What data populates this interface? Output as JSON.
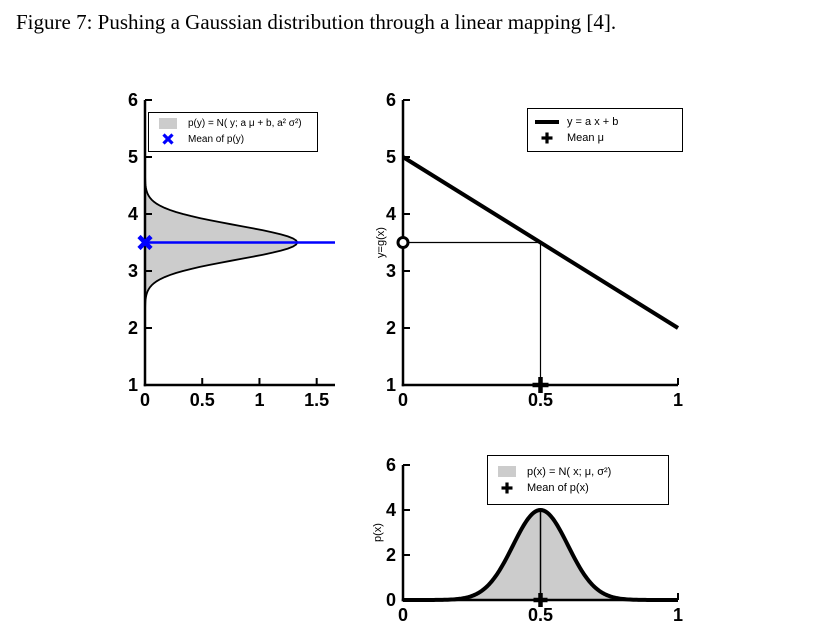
{
  "caption": "Figure 7: Pushing a Gaussian distribution through a linear mapping [4].",
  "colors": {
    "fill_gray": "#cccccc",
    "mean_blue": "#0000ff",
    "axis_black": "#000000"
  },
  "chart_data": [
    {
      "id": "py",
      "type": "area",
      "orientation": "rotated-density",
      "description": "Output Gaussian p(y) drawn sideways: density value on horizontal axis, y on vertical axis",
      "xlim": [
        0,
        1.66
      ],
      "ylim": [
        1,
        6
      ],
      "xticks": [
        0,
        0.5,
        1,
        1.5
      ],
      "yticks": [
        1,
        2,
        3,
        4,
        5,
        6
      ],
      "xlabel": "",
      "ylabel": "",
      "gaussian": {
        "mu": 3.5,
        "sigma": 0.3,
        "peak": 1.33
      },
      "mean": {
        "y": 3.5,
        "marker": "x",
        "color": "#0000ff"
      },
      "legend": [
        {
          "swatch": "gray-patch",
          "label": "p(y) = N( y; a μ + b, a² σ²)"
        },
        {
          "swatch": "blue-x",
          "label": "Mean of p(y)"
        }
      ]
    },
    {
      "id": "mapping",
      "type": "line",
      "description": "Linear mapping y = a x + b with a = -3, b = 5; guides connect input mean 0.5 to output mean 3.5",
      "xlim": [
        0,
        1
      ],
      "ylim": [
        1,
        6
      ],
      "xticks": [
        0,
        0.5,
        1
      ],
      "yticks": [
        1,
        2,
        3,
        4,
        5,
        6
      ],
      "xlabel": "",
      "ylabel": "y=g(x)",
      "line": {
        "equation": "y = a x + b",
        "a": -3,
        "b": 5,
        "x": [
          0,
          1
        ],
        "y": [
          5,
          2
        ]
      },
      "markers": [
        {
          "shape": "o",
          "x": 0,
          "y": 3.5
        },
        {
          "shape": "+",
          "x": 0.5,
          "y": 1
        }
      ],
      "guides": [
        {
          "x1": 0.5,
          "y1": 1,
          "x2": 0.5,
          "y2": 3.5
        },
        {
          "x1": 0,
          "y1": 3.5,
          "x2": 0.5,
          "y2": 3.5
        }
      ],
      "legend": [
        {
          "swatch": "thick-line",
          "label": "y = a x + b"
        },
        {
          "swatch": "black-plus",
          "label": "Mean μ"
        }
      ]
    },
    {
      "id": "px",
      "type": "area",
      "description": "Input Gaussian p(x) with mean 0.5 and peak density 4",
      "xlim": [
        0,
        1
      ],
      "ylim": [
        0,
        6
      ],
      "xticks": [
        0,
        0.5,
        1
      ],
      "yticks": [
        0,
        2,
        4,
        6
      ],
      "xlabel": "",
      "ylabel": "p(x)",
      "gaussian": {
        "mu": 0.5,
        "sigma": 0.1,
        "peak": 4
      },
      "mean": {
        "x": 0.5,
        "marker": "+"
      },
      "guides": [
        {
          "x1": 0.5,
          "y1": 0,
          "x2": 0.5,
          "y2": 4
        }
      ],
      "legend": [
        {
          "swatch": "gray-patch",
          "label": "p(x) = N( x; μ, σ²)"
        },
        {
          "swatch": "black-plus",
          "label": "Mean of p(x)"
        }
      ]
    }
  ]
}
